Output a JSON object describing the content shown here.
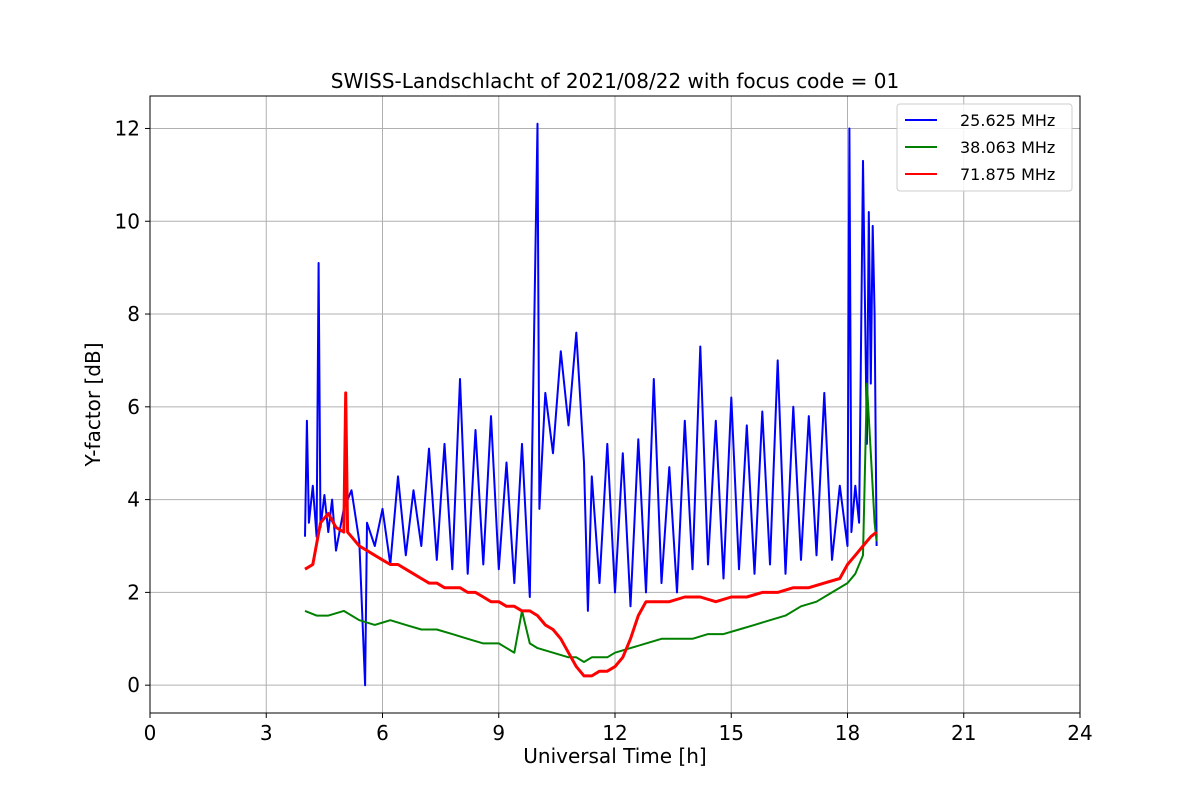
{
  "chart_data": {
    "type": "line",
    "title": "SWISS-Landschlacht of 2021/08/22 with focus code = 01",
    "xlabel": "Universal Time [h]",
    "ylabel": "Y-factor [dB]",
    "xlim": [
      0,
      24
    ],
    "ylim": [
      -0.6,
      12.7
    ],
    "xticks": [
      0,
      3,
      6,
      9,
      12,
      15,
      18,
      21,
      24
    ],
    "xtick_labels": [
      "0",
      "3",
      "6",
      "9",
      "12",
      "15",
      "18",
      "21",
      "24"
    ],
    "yticks": [
      0,
      2,
      4,
      6,
      8,
      10,
      12
    ],
    "ytick_labels": [
      "0",
      "2",
      "4",
      "6",
      "8",
      "10",
      "12"
    ],
    "grid": true,
    "legend_position": "top-right",
    "series": [
      {
        "name": "25.625 MHz",
        "color": "#0000ff",
        "x": [
          4.0,
          4.05,
          4.1,
          4.2,
          4.3,
          4.35,
          4.4,
          4.5,
          4.6,
          4.7,
          4.8,
          5.0,
          5.2,
          5.4,
          5.55,
          5.6,
          5.8,
          6.0,
          6.2,
          6.4,
          6.6,
          6.8,
          7.0,
          7.2,
          7.4,
          7.6,
          7.8,
          8.0,
          8.2,
          8.4,
          8.6,
          8.8,
          9.0,
          9.2,
          9.4,
          9.6,
          9.8,
          10.0,
          10.05,
          10.2,
          10.4,
          10.6,
          10.8,
          11.0,
          11.2,
          11.3,
          11.4,
          11.6,
          11.8,
          12.0,
          12.2,
          12.4,
          12.6,
          12.8,
          13.0,
          13.2,
          13.4,
          13.6,
          13.8,
          14.0,
          14.2,
          14.4,
          14.6,
          14.8,
          15.0,
          15.2,
          15.4,
          15.6,
          15.8,
          16.0,
          16.2,
          16.4,
          16.6,
          16.8,
          17.0,
          17.2,
          17.4,
          17.6,
          17.8,
          18.0,
          18.05,
          18.1,
          18.2,
          18.3,
          18.4,
          18.5,
          18.55,
          18.6,
          18.65,
          18.7,
          18.75
        ],
        "y": [
          3.2,
          5.7,
          3.5,
          4.3,
          3.2,
          9.1,
          3.4,
          4.1,
          3.3,
          4.0,
          2.9,
          3.8,
          4.2,
          3.1,
          0.0,
          3.5,
          3.0,
          3.8,
          2.6,
          4.5,
          2.8,
          4.2,
          3.0,
          5.1,
          2.7,
          5.2,
          2.5,
          6.6,
          2.4,
          5.5,
          2.6,
          5.8,
          2.5,
          4.8,
          2.2,
          5.2,
          1.9,
          12.1,
          3.8,
          6.3,
          5.0,
          7.2,
          5.6,
          7.6,
          4.8,
          1.6,
          4.5,
          2.2,
          5.2,
          2.0,
          5.0,
          1.7,
          5.3,
          2.0,
          6.6,
          2.2,
          4.7,
          2.0,
          5.7,
          2.5,
          7.3,
          2.6,
          5.7,
          2.3,
          6.2,
          2.5,
          5.6,
          2.4,
          5.9,
          2.6,
          7.0,
          2.4,
          6.0,
          2.7,
          5.8,
          2.8,
          6.3,
          2.7,
          4.3,
          3.0,
          12.0,
          3.3,
          4.3,
          3.5,
          11.3,
          5.2,
          10.2,
          6.5,
          9.9,
          8.0,
          3.0
        ]
      },
      {
        "name": "38.063 MHz",
        "color": "#008000",
        "x": [
          4.0,
          4.3,
          4.6,
          5.0,
          5.4,
          5.8,
          6.2,
          6.6,
          7.0,
          7.4,
          7.8,
          8.2,
          8.6,
          9.0,
          9.4,
          9.6,
          9.8,
          10.0,
          10.4,
          10.8,
          11.0,
          11.2,
          11.4,
          11.6,
          11.8,
          12.0,
          12.4,
          12.8,
          13.2,
          13.6,
          14.0,
          14.4,
          14.8,
          15.2,
          15.6,
          16.0,
          16.4,
          16.8,
          17.2,
          17.6,
          18.0,
          18.2,
          18.4,
          18.5,
          18.6,
          18.7,
          18.75
        ],
        "y": [
          1.6,
          1.5,
          1.5,
          1.6,
          1.4,
          1.3,
          1.4,
          1.3,
          1.2,
          1.2,
          1.1,
          1.0,
          0.9,
          0.9,
          0.7,
          1.6,
          0.9,
          0.8,
          0.7,
          0.6,
          0.6,
          0.5,
          0.6,
          0.6,
          0.6,
          0.7,
          0.8,
          0.9,
          1.0,
          1.0,
          1.0,
          1.1,
          1.1,
          1.2,
          1.3,
          1.4,
          1.5,
          1.7,
          1.8,
          2.0,
          2.2,
          2.4,
          2.8,
          6.5,
          5.0,
          3.5,
          3.1
        ]
      },
      {
        "name": "71.875 MHz",
        "color": "#ff0000",
        "x": [
          4.0,
          4.2,
          4.4,
          4.6,
          4.8,
          5.0,
          5.05,
          5.1,
          5.2,
          5.4,
          5.6,
          5.8,
          6.0,
          6.2,
          6.4,
          6.6,
          6.8,
          7.0,
          7.2,
          7.4,
          7.6,
          7.8,
          8.0,
          8.2,
          8.4,
          8.6,
          8.8,
          9.0,
          9.2,
          9.4,
          9.6,
          9.8,
          10.0,
          10.2,
          10.4,
          10.6,
          10.8,
          11.0,
          11.2,
          11.4,
          11.6,
          11.8,
          12.0,
          12.2,
          12.4,
          12.6,
          12.8,
          13.0,
          13.4,
          13.8,
          14.2,
          14.6,
          15.0,
          15.4,
          15.8,
          16.2,
          16.6,
          17.0,
          17.4,
          17.8,
          18.0,
          18.2,
          18.4,
          18.6,
          18.75
        ],
        "y": [
          2.5,
          2.6,
          3.5,
          3.7,
          3.4,
          3.3,
          6.3,
          3.3,
          3.2,
          3.0,
          2.9,
          2.8,
          2.7,
          2.6,
          2.6,
          2.5,
          2.4,
          2.3,
          2.2,
          2.2,
          2.1,
          2.1,
          2.1,
          2.0,
          2.0,
          1.9,
          1.8,
          1.8,
          1.7,
          1.7,
          1.6,
          1.6,
          1.5,
          1.3,
          1.2,
          1.0,
          0.7,
          0.4,
          0.2,
          0.2,
          0.3,
          0.3,
          0.4,
          0.6,
          1.0,
          1.5,
          1.8,
          1.8,
          1.8,
          1.9,
          1.9,
          1.8,
          1.9,
          1.9,
          2.0,
          2.0,
          2.1,
          2.1,
          2.2,
          2.3,
          2.6,
          2.8,
          3.0,
          3.2,
          3.3
        ]
      }
    ]
  }
}
